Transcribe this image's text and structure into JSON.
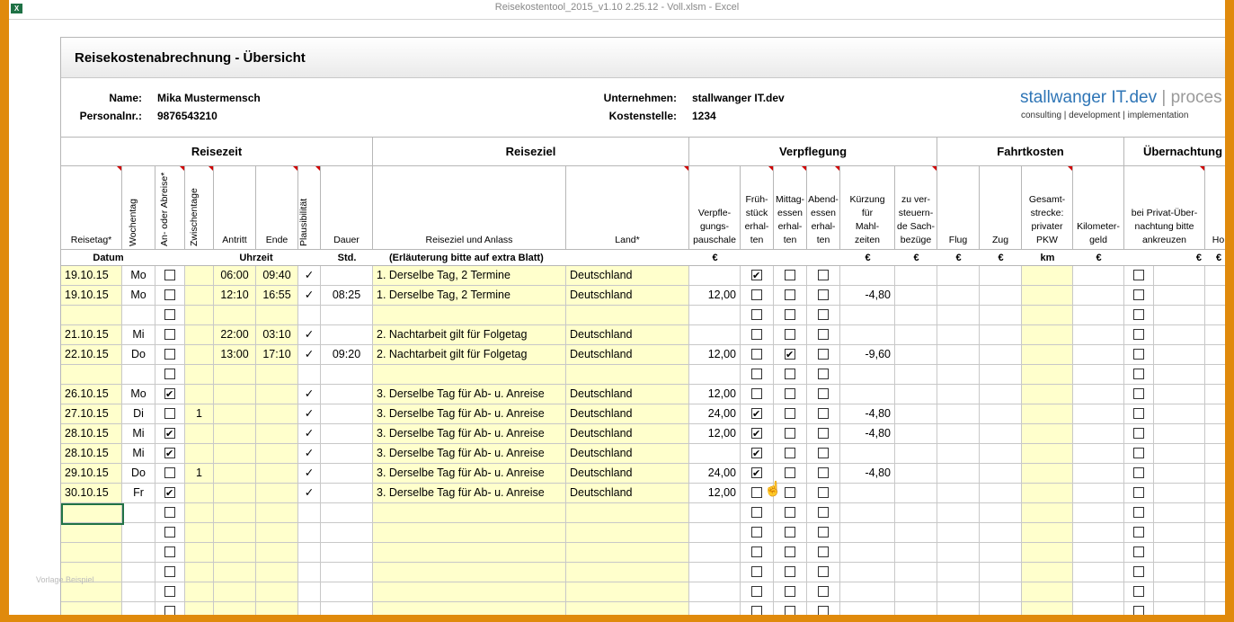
{
  "window": {
    "app_icon": "excel-icon",
    "title": "Reisekostentool_2015_v1.10 2.25.12 - Voll.xlsm - Excel"
  },
  "sheet": {
    "title": "Reisekostenabrechnung - Übersicht",
    "name_label": "Name:",
    "name_value": "Mika Mustermensch",
    "personal_label": "Personalnr.:",
    "personal_value": "9876543210",
    "company_label": "Unternehmen:",
    "company_value": "stallwanger IT.dev",
    "cost_label": "Kostenstelle:",
    "cost_value": "1234",
    "brand_main": "stallwanger IT.dev",
    "brand_pipe": "|",
    "brand_rest": "proces",
    "brand_sub": "consulting | development | implementation"
  },
  "groups": [
    "Reisezeit",
    "Reiseziel",
    "Verpflegung",
    "Fahrtkosten",
    "Übernachtung"
  ],
  "columns": {
    "reisetag": "Reisetag*",
    "wochentag": "Wochentag",
    "anab": "An- oder Abreise*",
    "zwischen": "Zwischentage",
    "antritt": "Antritt",
    "ende": "Ende",
    "plaus": "Plausibilität",
    "dauer": "Dauer",
    "anlass": "Reiseziel und Anlass",
    "land": "Land*",
    "verpf": "Verpfle-\ngungs-\npauschale",
    "fruh": "Früh-\nstück\nerhal-\nten",
    "mittag": "Mittag-\nessen\nerhal-\nten",
    "abend": "Abend-\nessen\nerhal-\nten",
    "kurz": "Kürzung\nfür\nMahl-\nzeiten",
    "versteuern": "zu ver-\nsteuern-\nde Sach-\nbezüge",
    "flug": "Flug",
    "zug": "Zug",
    "pkw": "Gesamt-\nstrecke:\nprivater\nPKW",
    "kmgeld": "Kilometer-\ngeld",
    "privat": "bei Privat-Über-\nnachtung bitte\nankreuzen",
    "ho": "Ho"
  },
  "units": {
    "datum": "Datum",
    "uhrzeit": "Uhrzeit",
    "std": "Std.",
    "erl": "(Erläuterung bitte auf extra Blatt)",
    "euro1": "€",
    "euro2": "€",
    "euro3": "€",
    "euro4": "€",
    "euro5": "€",
    "km": "km",
    "euro6": "€",
    "euro7": "€",
    "euro8": "€"
  },
  "rows": [
    {
      "date": "19.10.15",
      "day": "Mo",
      "an": false,
      "zw": "",
      "start": "06:00",
      "end": "09:40",
      "pl": "✓",
      "dur": "",
      "anlass": "1. Derselbe Tag, 2 Termine",
      "land": "Deutschland",
      "verpf": "",
      "f": true,
      "m": false,
      "a": false,
      "kurz": "",
      "p": false
    },
    {
      "date": "19.10.15",
      "day": "Mo",
      "an": false,
      "zw": "",
      "start": "12:10",
      "end": "16:55",
      "pl": "✓",
      "dur": "08:25",
      "anlass": "1. Derselbe Tag, 2 Termine",
      "land": "Deutschland",
      "verpf": "12,00",
      "f": false,
      "m": false,
      "a": false,
      "kurz": "-4,80",
      "p": false
    },
    {
      "date": "",
      "day": "",
      "an": false,
      "zw": "",
      "start": "",
      "end": "",
      "pl": "",
      "dur": "",
      "anlass": "",
      "land": "",
      "verpf": "",
      "f": false,
      "m": false,
      "a": false,
      "kurz": "",
      "p": false
    },
    {
      "date": "21.10.15",
      "day": "Mi",
      "an": false,
      "zw": "",
      "start": "22:00",
      "end": "03:10",
      "pl": "✓",
      "dur": "",
      "anlass": "2. Nachtarbeit gilt für Folgetag",
      "land": "Deutschland",
      "verpf": "",
      "f": false,
      "m": false,
      "a": false,
      "kurz": "",
      "p": false
    },
    {
      "date": "22.10.15",
      "day": "Do",
      "an": false,
      "zw": "",
      "start": "13:00",
      "end": "17:10",
      "pl": "✓",
      "dur": "09:20",
      "anlass": "2. Nachtarbeit gilt für Folgetag",
      "land": "Deutschland",
      "verpf": "12,00",
      "f": false,
      "m": true,
      "a": false,
      "kurz": "-9,60",
      "p": false
    },
    {
      "date": "",
      "day": "",
      "an": false,
      "zw": "",
      "start": "",
      "end": "",
      "pl": "",
      "dur": "",
      "anlass": "",
      "land": "",
      "verpf": "",
      "f": false,
      "m": false,
      "a": false,
      "kurz": "",
      "p": false
    },
    {
      "date": "26.10.15",
      "day": "Mo",
      "an": true,
      "zw": "",
      "start": "",
      "end": "",
      "pl": "✓",
      "dur": "",
      "anlass": "3. Derselbe Tag für Ab- u. Anreise",
      "land": "Deutschland",
      "verpf": "12,00",
      "f": false,
      "m": false,
      "a": false,
      "kurz": "",
      "p": false
    },
    {
      "date": "27.10.15",
      "day": "Di",
      "an": false,
      "zw": "1",
      "start": "",
      "end": "",
      "pl": "✓",
      "dur": "",
      "anlass": "3. Derselbe Tag für Ab- u. Anreise",
      "land": "Deutschland",
      "verpf": "24,00",
      "f": true,
      "m": false,
      "a": false,
      "kurz": "-4,80",
      "p": false
    },
    {
      "date": "28.10.15",
      "day": "Mi",
      "an": true,
      "zw": "",
      "start": "",
      "end": "",
      "pl": "✓",
      "dur": "",
      "anlass": "3. Derselbe Tag für Ab- u. Anreise",
      "land": "Deutschland",
      "verpf": "12,00",
      "f": true,
      "m": false,
      "a": false,
      "kurz": "-4,80",
      "p": false
    },
    {
      "date": "28.10.15",
      "day": "Mi",
      "an": true,
      "zw": "",
      "start": "",
      "end": "",
      "pl": "✓",
      "dur": "",
      "anlass": "3. Derselbe Tag für Ab- u. Anreise",
      "land": "Deutschland",
      "verpf": "",
      "f": true,
      "m": false,
      "a": false,
      "kurz": "",
      "p": false
    },
    {
      "date": "29.10.15",
      "day": "Do",
      "an": false,
      "zw": "1",
      "start": "",
      "end": "",
      "pl": "✓",
      "dur": "",
      "anlass": "3. Derselbe Tag für Ab- u. Anreise",
      "land": "Deutschland",
      "verpf": "24,00",
      "f": true,
      "m": false,
      "a": false,
      "kurz": "-4,80",
      "p": false
    },
    {
      "date": "30.10.15",
      "day": "Fr",
      "an": true,
      "zw": "",
      "start": "",
      "end": "",
      "pl": "✓",
      "dur": "",
      "anlass": "3. Derselbe Tag für Ab- u. Anreise",
      "land": "Deutschland",
      "verpf": "12,00",
      "f": false,
      "m": false,
      "a": false,
      "kurz": "",
      "p": false
    },
    {
      "date": "",
      "day": "",
      "an": false,
      "zw": "",
      "start": "",
      "end": "",
      "pl": "",
      "dur": "",
      "anlass": "",
      "land": "",
      "verpf": "",
      "f": false,
      "m": false,
      "a": false,
      "kurz": "",
      "p": false
    },
    {
      "date": "",
      "day": "",
      "an": false,
      "zw": "",
      "start": "",
      "end": "",
      "pl": "",
      "dur": "",
      "anlass": "",
      "land": "",
      "verpf": "",
      "f": false,
      "m": false,
      "a": false,
      "kurz": "",
      "p": false
    },
    {
      "date": "",
      "day": "",
      "an": false,
      "zw": "",
      "start": "",
      "end": "",
      "pl": "",
      "dur": "",
      "anlass": "",
      "land": "",
      "verpf": "",
      "f": false,
      "m": false,
      "a": false,
      "kurz": "",
      "p": false
    },
    {
      "date": "",
      "day": "",
      "an": false,
      "zw": "",
      "start": "",
      "end": "",
      "pl": "",
      "dur": "",
      "anlass": "",
      "land": "",
      "verpf": "",
      "f": false,
      "m": false,
      "a": false,
      "kurz": "",
      "p": false
    },
    {
      "date": "",
      "day": "",
      "an": false,
      "zw": "",
      "start": "",
      "end": "",
      "pl": "",
      "dur": "",
      "anlass": "",
      "land": "",
      "verpf": "",
      "f": false,
      "m": false,
      "a": false,
      "kurz": "",
      "p": false
    },
    {
      "date": "",
      "day": "",
      "an": false,
      "zw": "",
      "start": "",
      "end": "",
      "pl": "",
      "dur": "",
      "anlass": "",
      "land": "",
      "verpf": "",
      "f": false,
      "m": false,
      "a": false,
      "kurz": "",
      "p": false
    }
  ],
  "colors": {
    "input_fill": "#ffffcc",
    "selection": "#217346",
    "brand_blue": "#2e75b6",
    "frame": "#e08a0c"
  },
  "watermark": "Vorlage Beispiel"
}
